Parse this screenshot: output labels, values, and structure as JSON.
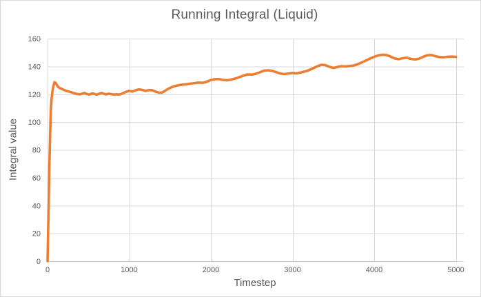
{
  "window": {
    "background": "#FFFFFF",
    "border_color": "#D9D9D9"
  },
  "chart_data": {
    "type": "line",
    "title": "Running Integral (Liquid)",
    "xlabel": "Timestep",
    "ylabel": "Integral value",
    "xlim": [
      0,
      5000
    ],
    "ylim": [
      0,
      160
    ],
    "x_ticks": [
      0,
      1000,
      2000,
      3000,
      4000,
      5000
    ],
    "y_ticks": [
      0,
      20,
      40,
      60,
      80,
      100,
      120,
      140,
      160
    ],
    "grid": true,
    "legend": false,
    "colors": {
      "line": "#ED7D31",
      "gridline": "#D9D9D9",
      "axis_line": "#BFBFBF",
      "tick_text": "#595959",
      "title_text": "#595959",
      "axis_title_text": "#595959"
    },
    "series": [
      {
        "name": "Running Integral (Liquid)",
        "color": "#ED7D31",
        "points": [
          [
            0,
            0
          ],
          [
            10,
            30
          ],
          [
            20,
            62
          ],
          [
            30,
            88
          ],
          [
            40,
            108
          ],
          [
            50,
            117
          ],
          [
            60,
            122
          ],
          [
            70,
            125.5
          ],
          [
            85,
            128.7
          ],
          [
            100,
            128.2
          ],
          [
            115,
            126.5
          ],
          [
            130,
            125.2
          ],
          [
            150,
            124.4
          ],
          [
            175,
            123.8
          ],
          [
            200,
            123.1
          ],
          [
            235,
            122.3
          ],
          [
            270,
            121.8
          ],
          [
            310,
            121.0
          ],
          [
            350,
            120.3
          ],
          [
            390,
            119.9
          ],
          [
            420,
            120.3
          ],
          [
            450,
            120.9
          ],
          [
            480,
            120.2
          ],
          [
            510,
            119.7
          ],
          [
            540,
            120.5
          ],
          [
            570,
            120.3
          ],
          [
            600,
            119.7
          ],
          [
            630,
            120.3
          ],
          [
            660,
            120.9
          ],
          [
            690,
            120.3
          ],
          [
            720,
            119.9
          ],
          [
            750,
            120.4
          ],
          [
            780,
            120.1
          ],
          [
            810,
            119.8
          ],
          [
            840,
            120.0
          ],
          [
            870,
            119.8
          ],
          [
            900,
            120.1
          ],
          [
            930,
            120.9
          ],
          [
            960,
            121.7
          ],
          [
            1000,
            122.4
          ],
          [
            1040,
            121.9
          ],
          [
            1080,
            122.9
          ],
          [
            1120,
            123.5
          ],
          [
            1160,
            123.1
          ],
          [
            1200,
            122.4
          ],
          [
            1240,
            123.0
          ],
          [
            1280,
            122.9
          ],
          [
            1320,
            121.9
          ],
          [
            1360,
            121.2
          ],
          [
            1400,
            121.1
          ],
          [
            1440,
            122.5
          ],
          [
            1480,
            124.0
          ],
          [
            1520,
            125.1
          ],
          [
            1560,
            125.9
          ],
          [
            1600,
            126.4
          ],
          [
            1650,
            126.9
          ],
          [
            1700,
            127.2
          ],
          [
            1750,
            127.6
          ],
          [
            1800,
            128.0
          ],
          [
            1850,
            128.4
          ],
          [
            1900,
            128.2
          ],
          [
            1950,
            129.0
          ],
          [
            2000,
            130.2
          ],
          [
            2050,
            130.8
          ],
          [
            2100,
            130.9
          ],
          [
            2150,
            130.3
          ],
          [
            2200,
            130.0
          ],
          [
            2250,
            130.6
          ],
          [
            2300,
            131.3
          ],
          [
            2350,
            132.3
          ],
          [
            2400,
            133.4
          ],
          [
            2450,
            134.3
          ],
          [
            2500,
            134.1
          ],
          [
            2550,
            134.7
          ],
          [
            2600,
            135.8
          ],
          [
            2650,
            136.9
          ],
          [
            2700,
            137.2
          ],
          [
            2750,
            136.8
          ],
          [
            2800,
            135.9
          ],
          [
            2850,
            134.9
          ],
          [
            2900,
            134.5
          ],
          [
            2950,
            134.9
          ],
          [
            3000,
            135.3
          ],
          [
            3050,
            135.0
          ],
          [
            3100,
            135.6
          ],
          [
            3150,
            136.3
          ],
          [
            3200,
            137.3
          ],
          [
            3250,
            138.6
          ],
          [
            3300,
            140.0
          ],
          [
            3350,
            141.2
          ],
          [
            3400,
            141.0
          ],
          [
            3450,
            139.8
          ],
          [
            3500,
            138.9
          ],
          [
            3550,
            139.6
          ],
          [
            3600,
            140.2
          ],
          [
            3650,
            140.0
          ],
          [
            3700,
            140.3
          ],
          [
            3750,
            140.7
          ],
          [
            3800,
            141.6
          ],
          [
            3850,
            142.9
          ],
          [
            3900,
            144.3
          ],
          [
            3950,
            145.7
          ],
          [
            4000,
            146.9
          ],
          [
            4050,
            147.9
          ],
          [
            4100,
            148.4
          ],
          [
            4150,
            148.2
          ],
          [
            4200,
            147.0
          ],
          [
            4250,
            145.8
          ],
          [
            4300,
            145.2
          ],
          [
            4350,
            145.9
          ],
          [
            4400,
            146.3
          ],
          [
            4450,
            145.4
          ],
          [
            4500,
            145.0
          ],
          [
            4550,
            145.6
          ],
          [
            4600,
            146.9
          ],
          [
            4650,
            148.0
          ],
          [
            4700,
            148.2
          ],
          [
            4750,
            147.3
          ],
          [
            4800,
            146.7
          ],
          [
            4850,
            146.6
          ],
          [
            4900,
            146.9
          ],
          [
            4950,
            147.0
          ],
          [
            5000,
            146.8
          ]
        ]
      }
    ]
  }
}
